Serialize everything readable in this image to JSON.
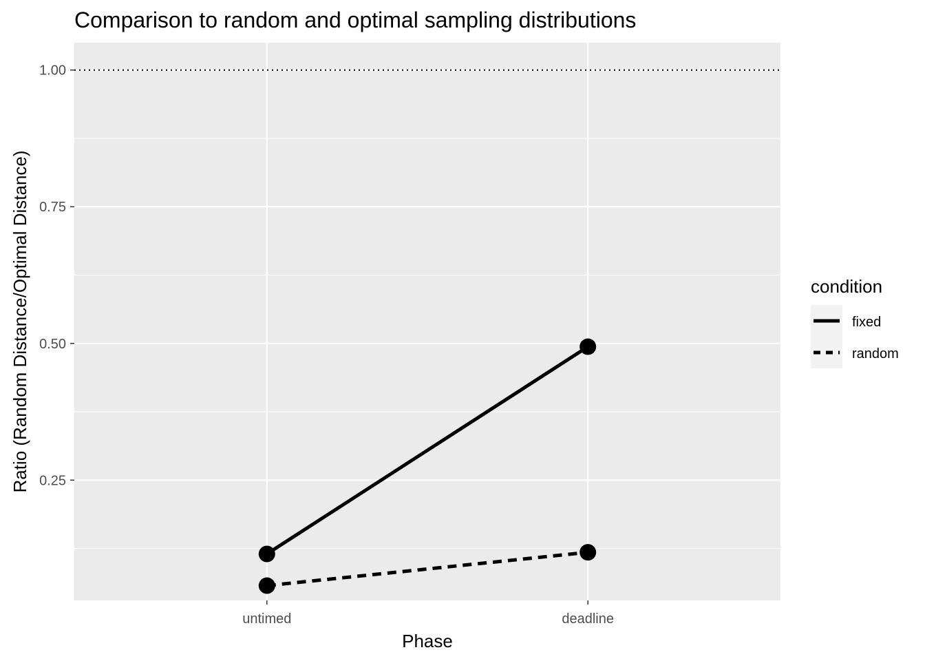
{
  "chart_data": {
    "type": "line",
    "title": "Comparison to random and optimal sampling distributions",
    "xlabel": "Phase",
    "ylabel": "Ratio (Random Distance/Optimal Distance)",
    "categories": [
      "untimed",
      "deadline"
    ],
    "ylim": [
      0.03,
      1.05
    ],
    "yticks": [
      0.25,
      0.5,
      0.75,
      1.0
    ],
    "ytick_labels": [
      "0.25",
      "0.50",
      "0.75",
      "1.00"
    ],
    "reference_line": {
      "y": 1.0,
      "style": "dotted"
    },
    "grid": true,
    "legend": {
      "title": "condition",
      "position": "right"
    },
    "series": [
      {
        "name": "fixed",
        "linetype": "solid",
        "values": [
          0.115,
          0.494
        ]
      },
      {
        "name": "random",
        "linetype": "dashed",
        "values": [
          0.057,
          0.118
        ]
      }
    ],
    "colors": {
      "panel": "#ebebeb",
      "grid": "#ffffff",
      "line": "#000000"
    }
  }
}
